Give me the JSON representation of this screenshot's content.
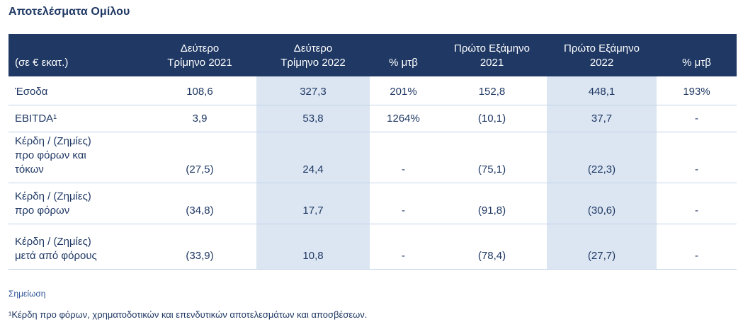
{
  "title": "Αποτελέσματα Ομίλου",
  "table": {
    "columns": [
      "(σε € εκατ.)",
      "Δεύτερο\nΤρίμηνο 2021",
      "Δεύτερο\nΤρίμηνο 2022",
      "% μτβ",
      "Πρώτο Εξάμηνο\n2021",
      "Πρώτο Εξάμηνο\n2022",
      "% μτβ"
    ],
    "rows": [
      {
        "label": "Έσοδα",
        "values": [
          "108,6",
          "327,3",
          "201%",
          "152,8",
          "448,1",
          "193%"
        ]
      },
      {
        "label": "EBITDA¹",
        "values": [
          "3,9",
          "53,8",
          "1264%",
          "(10,1)",
          "37,7",
          "-"
        ]
      },
      {
        "label": "Κέρδη / (Ζημίες)\nπρο φόρων και\nτόκων",
        "values": [
          "(27,5)",
          "24,4",
          "-",
          "(75,1)",
          "(22,3)",
          "-"
        ]
      },
      {
        "label": "Κέρδη / (Ζημίες)\nπρο φόρων",
        "values": [
          "(34,8)",
          "17,7",
          "-",
          "(91,8)",
          "(30,6)",
          "-"
        ]
      },
      {
        "label": "Κέρδη / (Ζημίες)\nμετά από φόρους",
        "values": [
          "(33,9)",
          "10,8",
          "-",
          "(78,4)",
          "(27,7)",
          "-"
        ]
      }
    ]
  },
  "note": {
    "heading": "Σημείωση",
    "footnote": "¹Κέρδη προ φόρων, χρηματοδοτικών και επενδυτικών αποτελεσμάτων και αποσβέσεων."
  },
  "colors": {
    "header_bg": "#1F3864",
    "body_text": "#1F3864",
    "shaded_column_bg": "#DCE6F2",
    "row_divider": "#C3D4E8"
  }
}
